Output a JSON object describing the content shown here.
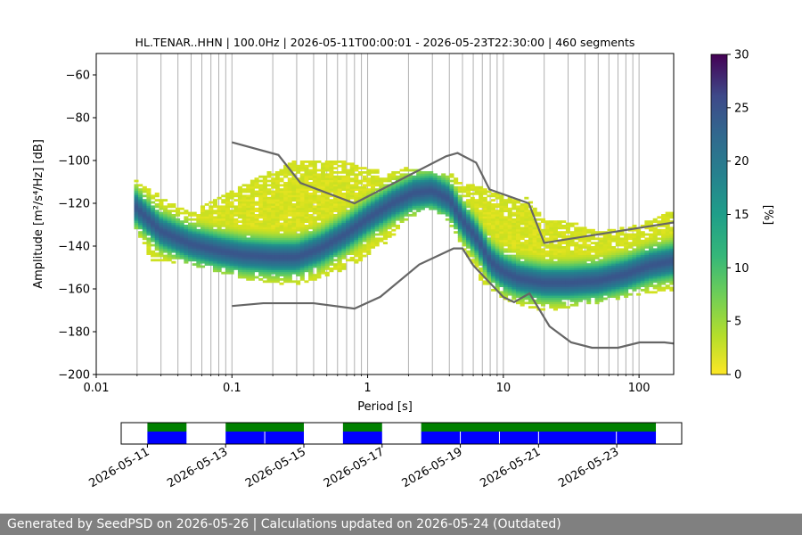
{
  "chart_data": {
    "type": "heatmap",
    "title": "HL.TENAR..HHN | 100.0Hz | 2026-05-11T00:00:01 - 2026-05-23T22:30:00 | 460 segments",
    "xlabel": "Period [s]",
    "ylabel": "Amplitude [m²/s⁴/Hz] [dB]",
    "x_scale": "log",
    "xlim": [
      0.01,
      180
    ],
    "ylim": [
      -200,
      -50
    ],
    "x_ticks": [
      0.01,
      0.1,
      1,
      10,
      100
    ],
    "x_tick_labels": [
      "0.01",
      "0.1",
      "1",
      "10",
      "100"
    ],
    "y_ticks": [
      -200,
      -180,
      -160,
      -140,
      -120,
      -100,
      -80,
      -60
    ],
    "y_tick_labels": [
      "−200",
      "−180",
      "−160",
      "−140",
      "−120",
      "−100",
      "−80",
      "−60"
    ],
    "grid": "vertical",
    "colorbar": {
      "label": "[%]",
      "range": [
        0,
        30
      ],
      "ticks": [
        "0",
        "5",
        "10",
        "15",
        "20",
        "25",
        "30"
      ],
      "colormap": "viridis_r"
    },
    "mode_curve": {
      "period": [
        0.019,
        0.03,
        0.05,
        0.08,
        0.12,
        0.2,
        0.3,
        0.45,
        0.7,
        1.0,
        1.5,
        2.2,
        3.0,
        4.0,
        5.0,
        6.5,
        8.0,
        10,
        13,
        20,
        30,
        50,
        80,
        120,
        175
      ],
      "db": [
        -121,
        -133,
        -139,
        -142,
        -144,
        -145,
        -145,
        -141,
        -134,
        -127,
        -120,
        -115,
        -114,
        -118,
        -128,
        -137,
        -147,
        -152,
        -155,
        -157,
        -157,
        -156,
        -153,
        -149,
        -147
      ]
    },
    "spread": {
      "period": [
        0.019,
        0.025,
        0.05,
        0.1,
        0.3,
        0.7,
        1.0,
        1.5,
        2.0,
        3.0,
        4.0,
        5.0,
        7.0,
        10,
        15,
        20,
        30,
        50,
        100,
        175
      ],
      "upper_db": [
        -109,
        -114,
        -125,
        -114,
        -100,
        -100,
        -104,
        -106,
        -103,
        -106,
        -106,
        -111,
        -113,
        -117,
        -118,
        -128,
        -128,
        -134,
        -130,
        -124
      ],
      "lower_db": [
        -129,
        -146,
        -148,
        -154,
        -158,
        -150,
        -144,
        -136,
        -126,
        -122,
        -128,
        -140,
        -157,
        -164,
        -168,
        -170,
        -168,
        -166,
        -162,
        -160
      ]
    },
    "nhnm": {
      "period": [
        0.1,
        0.22,
        0.32,
        0.8,
        3.8,
        4.6,
        6.3,
        7.9,
        15.4,
        20.0,
        354.8
      ],
      "db": [
        -91.5,
        -97.4,
        -110.5,
        -120.0,
        -98.0,
        -96.5,
        -101.0,
        -113.5,
        -120.0,
        -138.5,
        -126.0
      ]
    },
    "nlnm": {
      "period": [
        0.1,
        0.17,
        0.4,
        0.8,
        1.24,
        2.4,
        4.3,
        5.0,
        6.0,
        10.0,
        12.0,
        15.6,
        21.9,
        31.6,
        45.0,
        70.0,
        101.0,
        154.0,
        328.0
      ],
      "db": [
        -168.0,
        -166.7,
        -166.7,
        -169.2,
        -163.7,
        -148.6,
        -141.1,
        -141.1,
        -149.0,
        -163.8,
        -166.2,
        -162.1,
        -177.5,
        -185.0,
        -187.5,
        -187.5,
        -185.0,
        -185.0,
        -187.5
      ]
    },
    "availability": {
      "x_ticks": [
        "2026-05-11",
        "2026-05-13",
        "2026-05-15",
        "2026-05-17",
        "2026-05-19",
        "2026-05-21",
        "2026-05-23"
      ],
      "data_spans": [
        [
          "2026-05-11",
          "2026-05-12"
        ],
        [
          "2026-05-13",
          "2026-05-15"
        ],
        [
          "2026-05-16",
          "2026-05-17"
        ],
        [
          "2026-05-18",
          "2026-05-24"
        ]
      ],
      "segment_boundaries": [
        "2026-05-14",
        "2026-05-19",
        "2026-05-20",
        "2026-05-21",
        "2026-05-22.99"
      ]
    }
  },
  "footer": {
    "text": "Generated by SeedPSD on 2026-05-26 | Calculations updated on 2026-05-24 (Outdated)"
  },
  "colors": {
    "nhnm_nlnm": "#666666",
    "availability_data": "#008000",
    "availability_psd": "#0000ff",
    "grid": "#b0b0b0",
    "footer_bg": "#808080"
  }
}
